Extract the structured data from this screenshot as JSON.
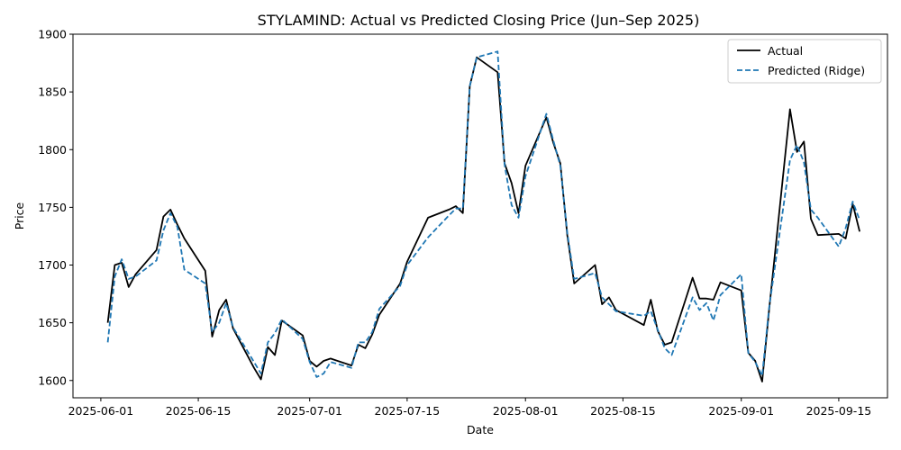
{
  "chart_data": {
    "type": "line",
    "title": "STYLAMIND: Actual vs Predicted Closing Price (Jun–Sep 2025)",
    "xlabel": "Date",
    "ylabel": "Price",
    "xlim": [
      "2025-05-28",
      "2025-09-22"
    ],
    "ylim": [
      1585,
      1900
    ],
    "x_ticks": [
      "2025-06-01",
      "2025-06-15",
      "2025-07-01",
      "2025-07-15",
      "2025-08-01",
      "2025-08-15",
      "2025-09-01",
      "2025-09-15"
    ],
    "y_ticks": [
      1600,
      1650,
      1700,
      1750,
      1800,
      1850,
      1900
    ],
    "grid": false,
    "legend_position": "top-right",
    "series": [
      {
        "name": "Actual",
        "color": "#000000",
        "style": "solid",
        "points": [
          [
            "2025-06-02",
            1650
          ],
          [
            "2025-06-03",
            1700
          ],
          [
            "2025-06-04",
            1702
          ],
          [
            "2025-06-05",
            1681
          ],
          [
            "2025-06-06",
            1692
          ],
          [
            "2025-06-09",
            1713
          ],
          [
            "2025-06-10",
            1742
          ],
          [
            "2025-06-11",
            1748
          ],
          [
            "2025-06-12",
            1735
          ],
          [
            "2025-06-13",
            1723
          ],
          [
            "2025-06-16",
            1695
          ],
          [
            "2025-06-17",
            1638
          ],
          [
            "2025-06-18",
            1661
          ],
          [
            "2025-06-19",
            1670
          ],
          [
            "2025-06-20",
            1645
          ],
          [
            "2025-06-23",
            1611
          ],
          [
            "2025-06-24",
            1601
          ],
          [
            "2025-06-25",
            1629
          ],
          [
            "2025-06-26",
            1622
          ],
          [
            "2025-06-27",
            1652
          ],
          [
            "2025-06-30",
            1639
          ],
          [
            "2025-07-01",
            1617
          ],
          [
            "2025-07-02",
            1612
          ],
          [
            "2025-07-03",
            1617
          ],
          [
            "2025-07-04",
            1619
          ],
          [
            "2025-07-07",
            1613
          ],
          [
            "2025-07-08",
            1631
          ],
          [
            "2025-07-09",
            1628
          ],
          [
            "2025-07-10",
            1640
          ],
          [
            "2025-07-11",
            1657
          ],
          [
            "2025-07-14",
            1684
          ],
          [
            "2025-07-15",
            1703
          ],
          [
            "2025-07-18",
            1741
          ],
          [
            "2025-07-21",
            1748
          ],
          [
            "2025-07-22",
            1751
          ],
          [
            "2025-07-23",
            1745
          ],
          [
            "2025-07-24",
            1855
          ],
          [
            "2025-07-25",
            1880
          ],
          [
            "2025-07-28",
            1867
          ],
          [
            "2025-07-29",
            1788
          ],
          [
            "2025-07-30",
            1771
          ],
          [
            "2025-07-31",
            1745
          ],
          [
            "2025-08-01",
            1786
          ],
          [
            "2025-08-04",
            1828
          ],
          [
            "2025-08-05",
            1806
          ],
          [
            "2025-08-06",
            1788
          ],
          [
            "2025-08-07",
            1726
          ],
          [
            "2025-08-08",
            1684
          ],
          [
            "2025-08-11",
            1700
          ],
          [
            "2025-08-12",
            1666
          ],
          [
            "2025-08-13",
            1672
          ],
          [
            "2025-08-14",
            1661
          ],
          [
            "2025-08-18",
            1648
          ],
          [
            "2025-08-19",
            1670
          ],
          [
            "2025-08-20",
            1643
          ],
          [
            "2025-08-21",
            1631
          ],
          [
            "2025-08-22",
            1633
          ],
          [
            "2025-08-25",
            1689
          ],
          [
            "2025-08-26",
            1671
          ],
          [
            "2025-08-27",
            1671
          ],
          [
            "2025-08-28",
            1670
          ],
          [
            "2025-08-29",
            1685
          ],
          [
            "2025-09-01",
            1678
          ],
          [
            "2025-09-02",
            1624
          ],
          [
            "2025-09-03",
            1617
          ],
          [
            "2025-09-04",
            1599
          ],
          [
            "2025-09-05",
            1661
          ],
          [
            "2025-09-08",
            1835
          ],
          [
            "2025-09-09",
            1798
          ],
          [
            "2025-09-10",
            1807
          ],
          [
            "2025-09-11",
            1740
          ],
          [
            "2025-09-12",
            1726
          ],
          [
            "2025-09-15",
            1727
          ],
          [
            "2025-09-16",
            1723
          ],
          [
            "2025-09-17",
            1753
          ],
          [
            "2025-09-18",
            1729
          ]
        ]
      },
      {
        "name": "Predicted (Ridge)",
        "color": "#1f77b4",
        "style": "dashed",
        "points": [
          [
            "2025-06-02",
            1633
          ],
          [
            "2025-06-03",
            1690
          ],
          [
            "2025-06-04",
            1705
          ],
          [
            "2025-06-05",
            1688
          ],
          [
            "2025-06-06",
            1690
          ],
          [
            "2025-06-09",
            1704
          ],
          [
            "2025-06-10",
            1730
          ],
          [
            "2025-06-11",
            1745
          ],
          [
            "2025-06-12",
            1733
          ],
          [
            "2025-06-13",
            1696
          ],
          [
            "2025-06-16",
            1684
          ],
          [
            "2025-06-17",
            1642
          ],
          [
            "2025-06-18",
            1650
          ],
          [
            "2025-06-19",
            1667
          ],
          [
            "2025-06-20",
            1646
          ],
          [
            "2025-06-23",
            1616
          ],
          [
            "2025-06-24",
            1606
          ],
          [
            "2025-06-25",
            1633
          ],
          [
            "2025-06-26",
            1641
          ],
          [
            "2025-06-27",
            1653
          ],
          [
            "2025-06-30",
            1636
          ],
          [
            "2025-07-01",
            1616
          ],
          [
            "2025-07-02",
            1603
          ],
          [
            "2025-07-03",
            1606
          ],
          [
            "2025-07-04",
            1616
          ],
          [
            "2025-07-07",
            1611
          ],
          [
            "2025-07-08",
            1633
          ],
          [
            "2025-07-09",
            1633
          ],
          [
            "2025-07-10",
            1642
          ],
          [
            "2025-07-11",
            1662
          ],
          [
            "2025-07-14",
            1682
          ],
          [
            "2025-07-15",
            1700
          ],
          [
            "2025-07-18",
            1724
          ],
          [
            "2025-07-21",
            1743
          ],
          [
            "2025-07-22",
            1749
          ],
          [
            "2025-07-23",
            1749
          ],
          [
            "2025-07-24",
            1855
          ],
          [
            "2025-07-25",
            1880
          ],
          [
            "2025-07-28",
            1885
          ],
          [
            "2025-07-29",
            1787
          ],
          [
            "2025-07-30",
            1752
          ],
          [
            "2025-07-31",
            1741
          ],
          [
            "2025-08-01",
            1777
          ],
          [
            "2025-08-04",
            1831
          ],
          [
            "2025-08-05",
            1808
          ],
          [
            "2025-08-06",
            1786
          ],
          [
            "2025-08-07",
            1728
          ],
          [
            "2025-08-08",
            1688
          ],
          [
            "2025-08-11",
            1693
          ],
          [
            "2025-08-12",
            1672
          ],
          [
            "2025-08-13",
            1666
          ],
          [
            "2025-08-14",
            1660
          ],
          [
            "2025-08-18",
            1656
          ],
          [
            "2025-08-19",
            1660
          ],
          [
            "2025-08-20",
            1644
          ],
          [
            "2025-08-21",
            1628
          ],
          [
            "2025-08-22",
            1622
          ],
          [
            "2025-08-25",
            1672
          ],
          [
            "2025-08-26",
            1661
          ],
          [
            "2025-08-27",
            1667
          ],
          [
            "2025-08-28",
            1652
          ],
          [
            "2025-08-29",
            1674
          ],
          [
            "2025-09-01",
            1692
          ],
          [
            "2025-09-02",
            1624
          ],
          [
            "2025-09-03",
            1616
          ],
          [
            "2025-09-04",
            1604
          ],
          [
            "2025-09-05",
            1663
          ],
          [
            "2025-09-08",
            1791
          ],
          [
            "2025-09-09",
            1804
          ],
          [
            "2025-09-10",
            1789
          ],
          [
            "2025-09-11",
            1748
          ],
          [
            "2025-09-12",
            1741
          ],
          [
            "2025-09-15",
            1716
          ],
          [
            "2025-09-16",
            1732
          ],
          [
            "2025-09-17",
            1755
          ],
          [
            "2025-09-18",
            1739
          ]
        ]
      }
    ]
  }
}
